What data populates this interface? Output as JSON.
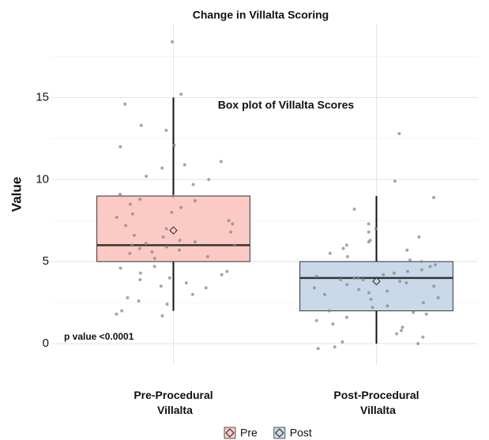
{
  "chart_data": {
    "type": "box",
    "title": "Change in Villalta Scoring",
    "annotation": "Box plot of Villalta Scores",
    "note": "p value <0.0001",
    "y_label": "Value",
    "categories": [
      "Pre-Procedural Villalta",
      "Post-Procedural Villalta"
    ],
    "ylim": [
      -1.3,
      19.5
    ],
    "yticks": [
      0,
      5,
      10,
      15
    ],
    "yminor": [
      2.5,
      7.5,
      12.5,
      17.5
    ],
    "grid": true,
    "series": [
      {
        "name": "Pre",
        "color": "#fbcac4",
        "min": 2,
        "q1": 5,
        "median": 6,
        "q3": 9,
        "max": 15,
        "mean": 6.9,
        "points": [
          18.4,
          15.2,
          14.6,
          13.3,
          13,
          12.1,
          12,
          11.1,
          10.9,
          10.7,
          10.2,
          10,
          9.7,
          9.1,
          9,
          8.8,
          8.7,
          8.5,
          8.3,
          8,
          7.9,
          7.7,
          7.5,
          7.3,
          7.2,
          7,
          6.8,
          6.6,
          6.5,
          6.3,
          6.2,
          6.1,
          6,
          6,
          5.9,
          5.8,
          5.7,
          5.6,
          5.5,
          5.3,
          5.2,
          4.7,
          4.6,
          4.4,
          4.3,
          4.2,
          4,
          3.9,
          3.7,
          3.5,
          3.4,
          3,
          2.8,
          2.6,
          2.4,
          2,
          1.8,
          1.7
        ]
      },
      {
        "name": "Post",
        "color": "#c9d9ea",
        "min": 0,
        "q1": 2,
        "median": 4,
        "q3": 5,
        "max": 9,
        "mean": 3.8,
        "points": [
          12.8,
          9.9,
          8.9,
          8.2,
          7.3,
          7,
          6.8,
          6.5,
          6.3,
          6.2,
          6,
          5.8,
          5.7,
          5.5,
          5.3,
          5.1,
          5,
          4.8,
          4.7,
          4.5,
          4.4,
          4.3,
          4.2,
          4.1,
          4,
          4,
          3.9,
          3.9,
          3.8,
          3.7,
          3.6,
          3.5,
          3.4,
          3.3,
          3.2,
          3.1,
          3,
          2.8,
          2.7,
          2.5,
          2.3,
          2.2,
          2,
          1.9,
          1.8,
          1.6,
          1.4,
          1.2,
          1,
          0.8,
          0.6,
          0.4,
          0.1,
          0,
          -0.2,
          -0.3
        ]
      }
    ]
  }
}
